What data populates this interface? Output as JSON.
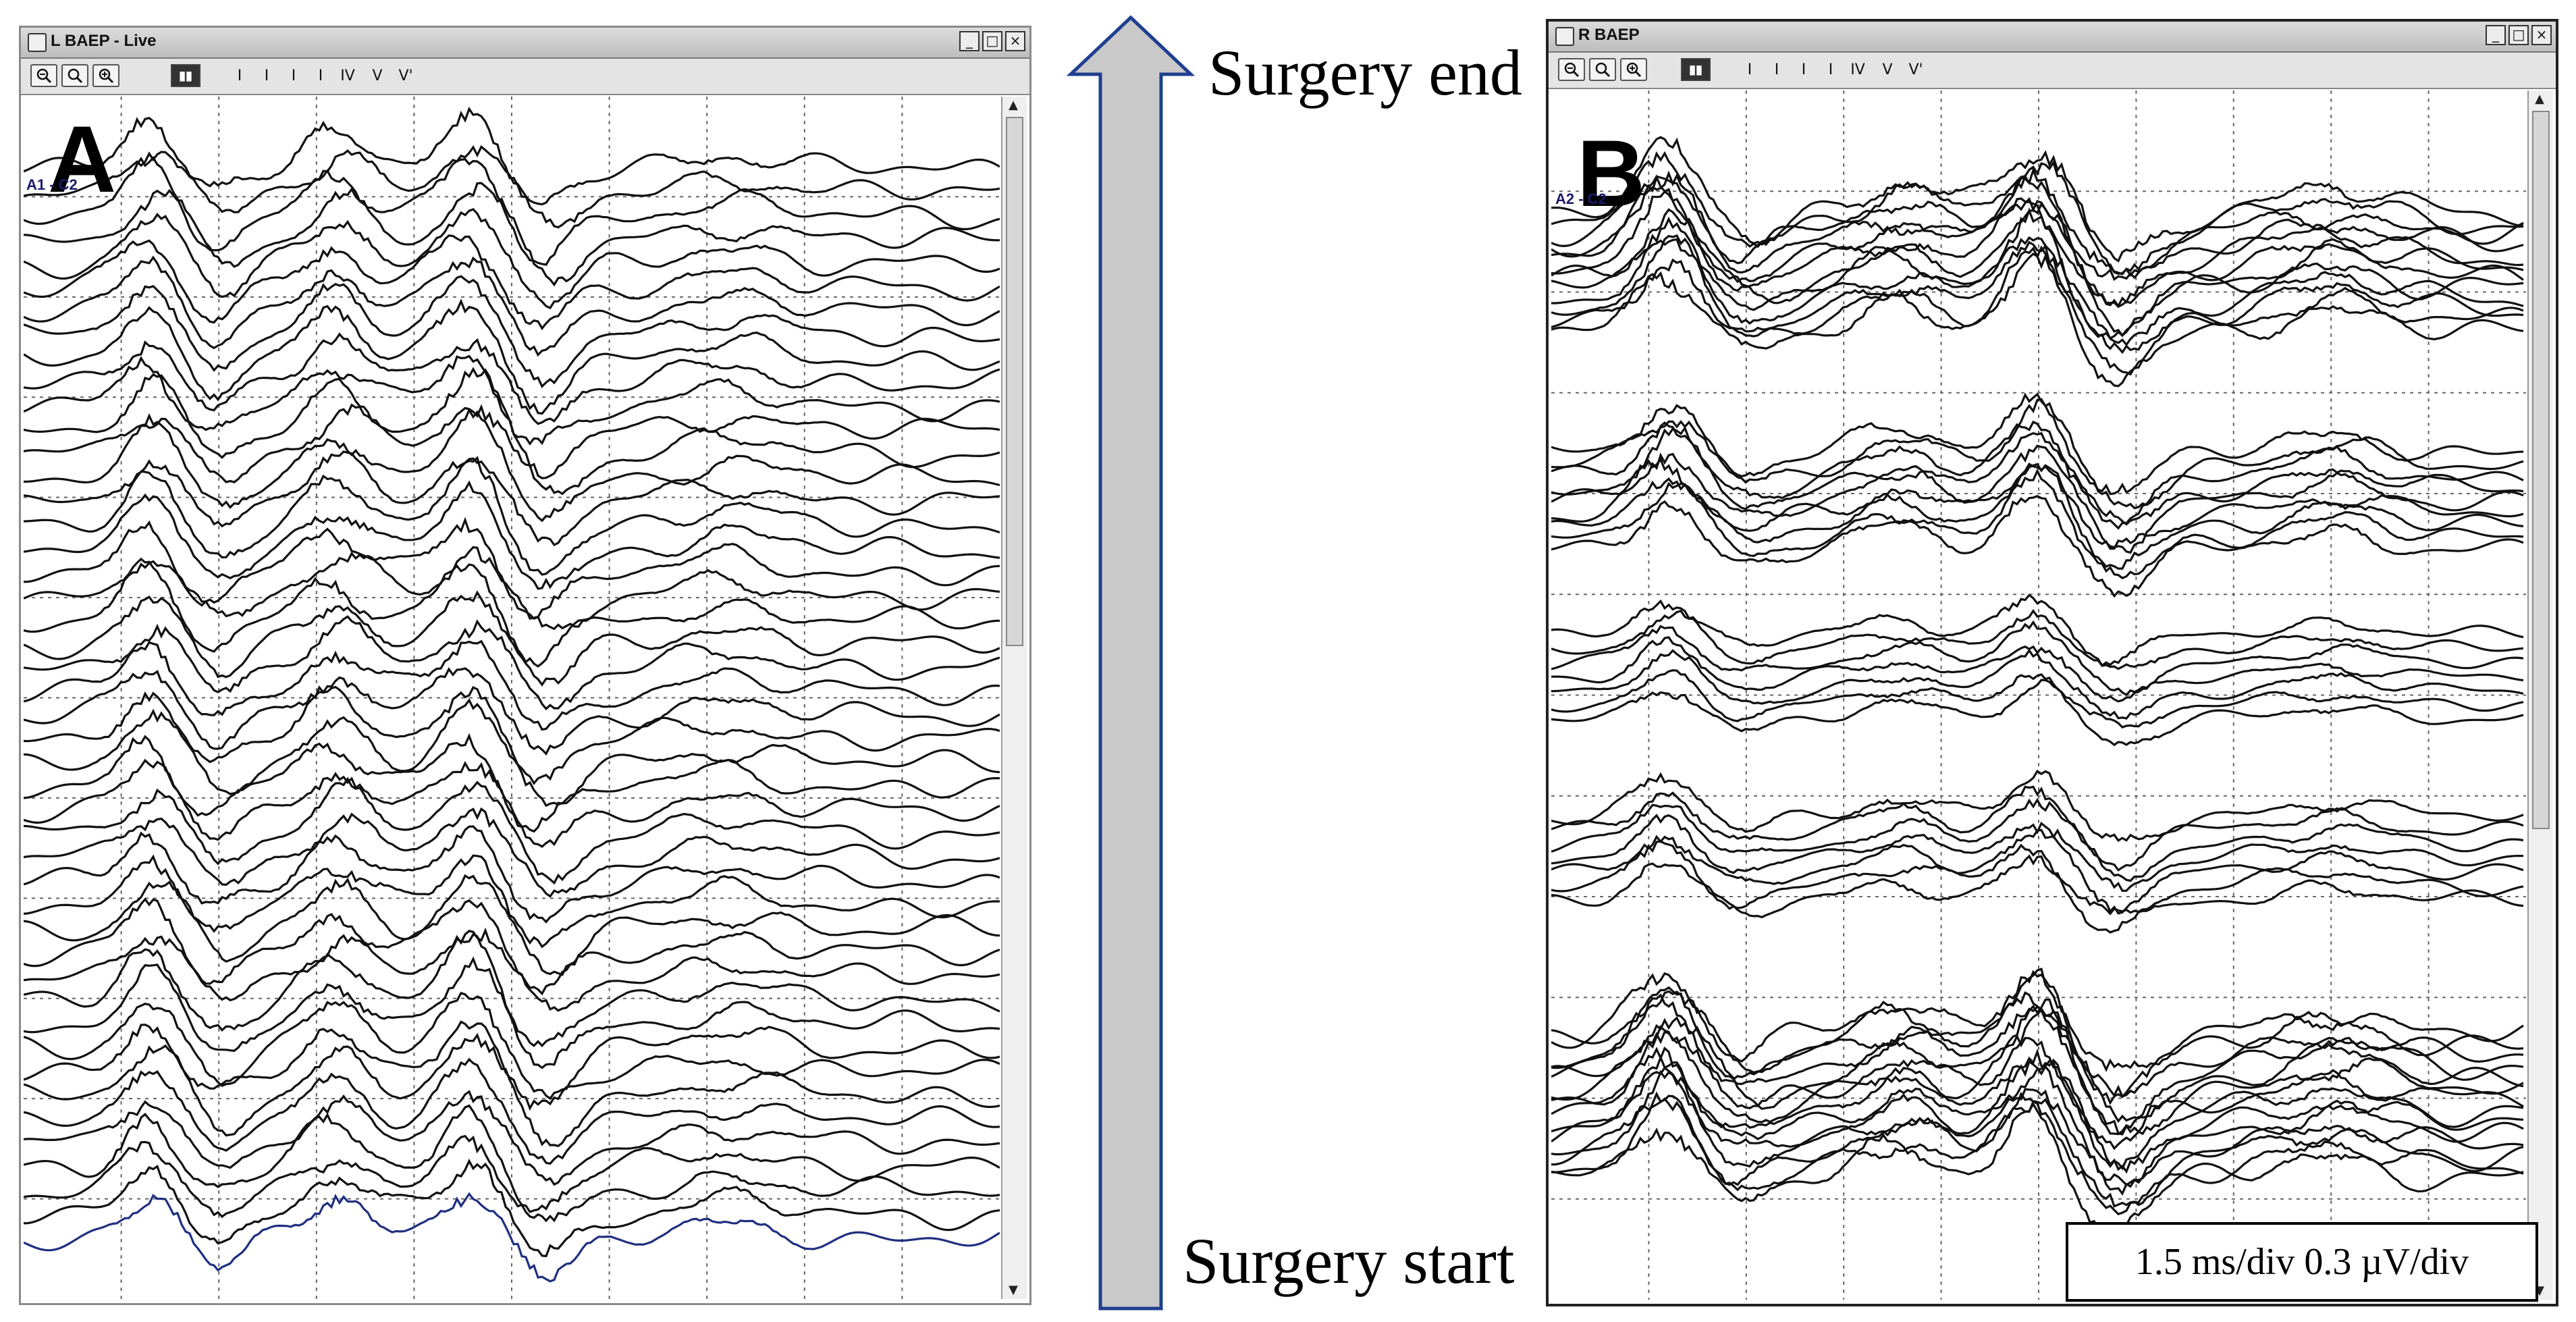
{
  "window_a": {
    "title": "L BAEP - Live",
    "panel_letter": "A",
    "channel": "A1 - C2",
    "controls": {
      "minimize": "_",
      "maximize": "□",
      "close": "×"
    },
    "toolbar": {
      "markers": [
        "I",
        "I",
        "I",
        "I",
        "IV",
        "V",
        "V'"
      ]
    }
  },
  "window_b": {
    "title": "R BAEP",
    "panel_letter": "B",
    "channel": "A2 - C2",
    "controls": {
      "minimize": "_",
      "maximize": "□",
      "close": "×"
    },
    "toolbar": {
      "markers": [
        "I",
        "I",
        "I",
        "I",
        "IV",
        "V",
        "V'"
      ]
    }
  },
  "timeline": {
    "end_label": "Surgery end",
    "start_label": "Surgery start",
    "arrow_fill": "#c9c9c9",
    "arrow_stroke": "#1f3f8f"
  },
  "scale": {
    "text": "1.5 ms/div  0.3 µV/div"
  },
  "colors": {
    "grid": "#666666",
    "trace": "#111111",
    "last_trace": "#1f2f80"
  },
  "icons": {
    "zoom_out": "zoom-out-icon",
    "zoom_fit": "zoom-fit-icon",
    "zoom_in": "zoom-in-icon",
    "display": "display-mode-icon"
  }
}
